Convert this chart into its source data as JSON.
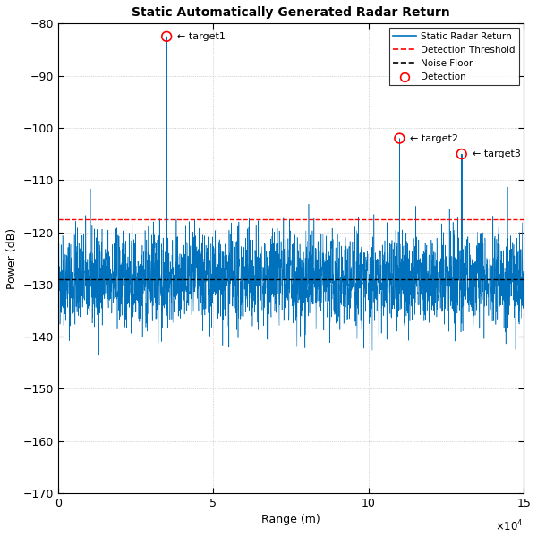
{
  "title": "Static Automatically Generated Radar Return",
  "xlabel": "Range (m)",
  "ylabel": "Power (dB)",
  "xlim": [
    0,
    150000
  ],
  "ylim": [
    -170,
    -80
  ],
  "yticks": [
    -170,
    -160,
    -150,
    -140,
    -130,
    -120,
    -110,
    -100,
    -90,
    -80
  ],
  "xticks": [
    0,
    50000,
    100000,
    150000
  ],
  "xtick_labels": [
    "0",
    "5",
    "10",
    "15"
  ],
  "noise_floor": -129,
  "detection_threshold": -117.5,
  "targets": [
    {
      "range": 35000,
      "power": -82.5,
      "label": "target1"
    },
    {
      "range": 110000,
      "power": -102,
      "label": "target2"
    },
    {
      "range": 130000,
      "power": -105,
      "label": "target3"
    }
  ],
  "signal_color": "#0072BD",
  "threshold_color": "#FF0000",
  "noise_color": "#000000",
  "detection_color": "#FF0000",
  "n_points": 3000,
  "noise_mean": -129,
  "noise_std": 4.5,
  "seed": 42
}
